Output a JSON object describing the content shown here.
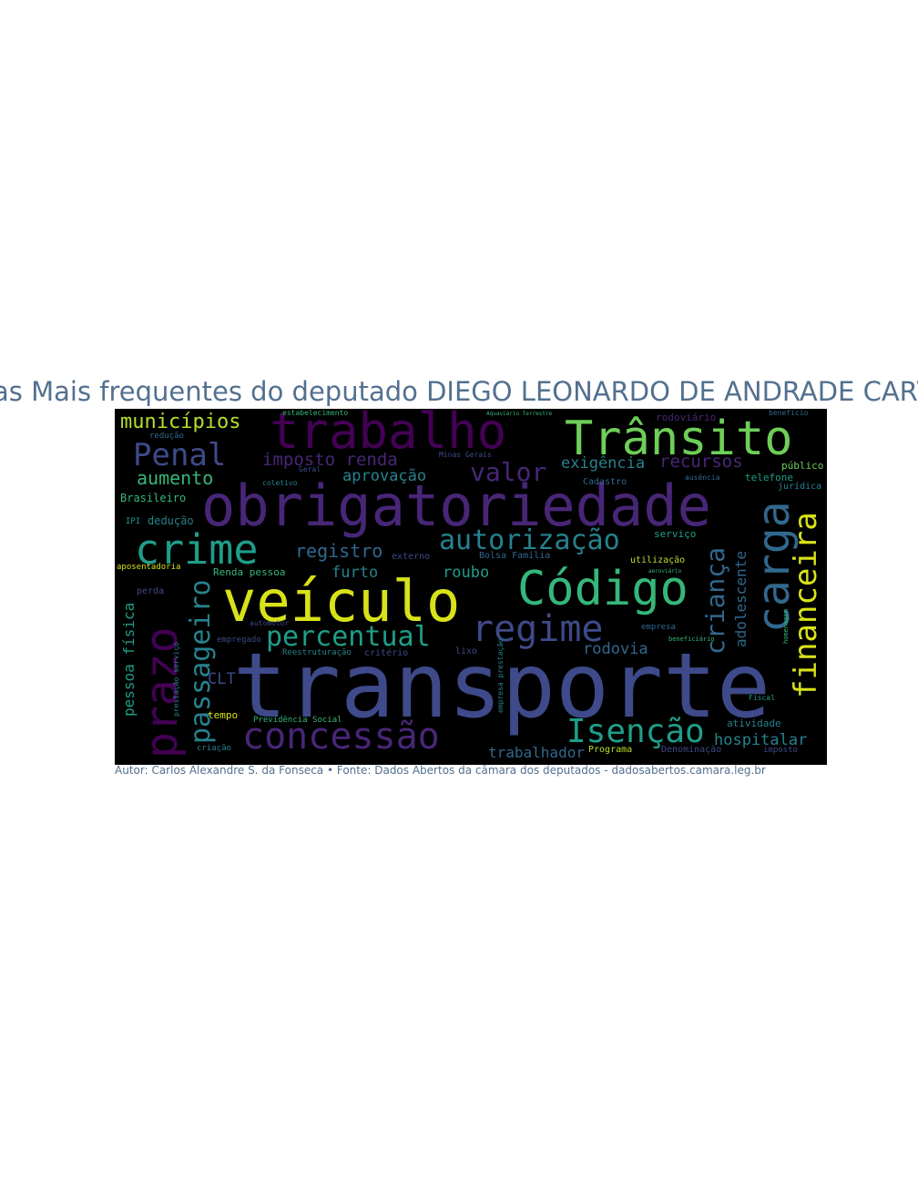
{
  "title": "Palavras Mais frequentes do deputado DIEGO LEONARDO DE ANDRADE CARVALHO",
  "caption": "Autor: Carlos Alexandre S. da Fonseca • Fonte: Dados Abertos da câmara dos deputados - dadosabertos.camara.leg.br",
  "colors": {
    "title": "#53708f",
    "background": "#000000",
    "purple_dark": "#440154",
    "purple": "#482677",
    "indigo": "#3e4a89",
    "blue": "#31688e",
    "teal": "#26828e",
    "teal_green": "#1f9e89",
    "green": "#35b779",
    "lime": "#6ece58",
    "yellow_green": "#b5de2b",
    "yellow": "#d8e219"
  },
  "words": {
    "transporte": "transporte",
    "obrigatoriedade": "obrigatoriedade",
    "veiculo": "veículo",
    "codigo": "Código",
    "transito": "Trânsito",
    "trabalho": "trabalho",
    "crime": "crime",
    "prazo": "prazo",
    "carga": "carga",
    "regime": "regime",
    "concessao": "concessão",
    "financeira": "financeira",
    "isencao": "Isenção",
    "passageiro": "passageiro",
    "autorizacao": "autorização",
    "percentual": "percentual",
    "penal": "Penal",
    "crianca": "criança",
    "valor": "valor",
    "municipios": "municípios",
    "registro": "registro",
    "imposto_renda": "imposto renda",
    "recursos": "recursos",
    "aumento": "aumento",
    "aprovacao": "aprovação",
    "exigencia": "exigência",
    "furto": "furto",
    "roubo": "roubo",
    "rodovia": "rodovia",
    "adolescente": "adolescente",
    "hospitalar": "hospitalar",
    "trabalhador": "trabalhador",
    "pessoa_fisica": "pessoa física",
    "clt": "CLT",
    "brasileiro": "Brasileiro",
    "deducao": "dedução",
    "ipi": "IPI",
    "renda_pessoa": "Renda pessoa",
    "publico": "público",
    "telefone": "telefone",
    "juridica": "jurídica",
    "servico": "serviço",
    "utilizacao": "utilização",
    "rodoviario": "rodoviário",
    "atividade": "atividade",
    "programa": "Programa",
    "denominacao": "Denominação",
    "imposto": "imposto",
    "fiscal": "Fiscal",
    "empresa": "empresa",
    "beneficiario": "beneficiário",
    "homenagem": "homenagem",
    "bolsa_familia": "Bolsa Família",
    "externo": "externo",
    "lixo": "lixo",
    "criterio": "critério",
    "reestruturacao": "Reestruturação",
    "previdencia_social": "Previdência Social",
    "tempo": "tempo",
    "criacao": "criação",
    "empregado": "empregado",
    "automotor": "automotor",
    "perda": "perda",
    "aposentadoria": "aposentadoria",
    "prestacao_servico": "prestação serviço",
    "reducao": "redução",
    "coletivo": "coletivo",
    "cadastro": "Cadastro",
    "ausencia": "ausência",
    "geral": "Geral",
    "minas_gerais": "Minas Gerais",
    "estabelecimento": "estabelecimento",
    "aquaviario_terrestre": "Aquaviário Terrestre",
    "beneficio": "benefício",
    "empresa_prestacao": "empresa prestação",
    "aeroviario": "aeroviário"
  }
}
